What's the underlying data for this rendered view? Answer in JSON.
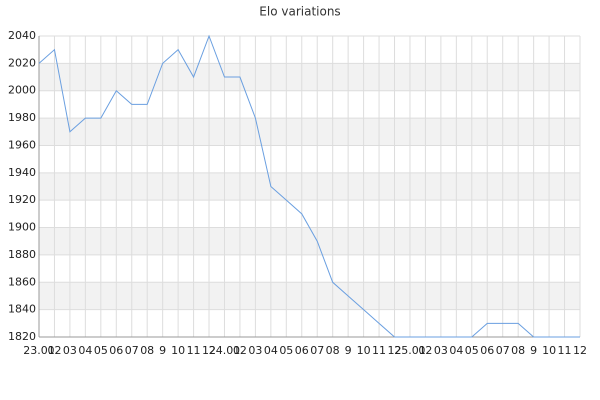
{
  "chart_data": {
    "type": "line",
    "title": "Elo variations",
    "categories": [
      "23.01",
      "02",
      "03",
      "04",
      "05",
      "06",
      "07",
      "08",
      "9",
      "10",
      "11",
      "12",
      "24.01",
      "02",
      "03",
      "04",
      "05",
      "06",
      "07",
      "08",
      "9",
      "10",
      "11",
      "12",
      "25.01",
      "02",
      "03",
      "04",
      "05",
      "06",
      "07",
      "08",
      "9",
      "10",
      "11",
      "12"
    ],
    "series": [
      {
        "name": "Elo",
        "color": "#6a9fe0",
        "values": [
          2020,
          2030,
          1970,
          1980,
          1980,
          2000,
          1990,
          1990,
          2020,
          2030,
          2010,
          2040,
          2010,
          2010,
          1980,
          1930,
          1920,
          1910,
          1890,
          1860,
          1850,
          1840,
          1830,
          1820,
          1820,
          1820,
          1820,
          1820,
          1820,
          1830,
          1830,
          1830,
          1820,
          1820,
          1820,
          1820
        ]
      }
    ],
    "ylim": [
      1820,
      2040
    ],
    "yticks": [
      1820,
      1840,
      1860,
      1880,
      1900,
      1920,
      1940,
      1960,
      1980,
      2000,
      2020,
      2040
    ],
    "grid": true
  }
}
